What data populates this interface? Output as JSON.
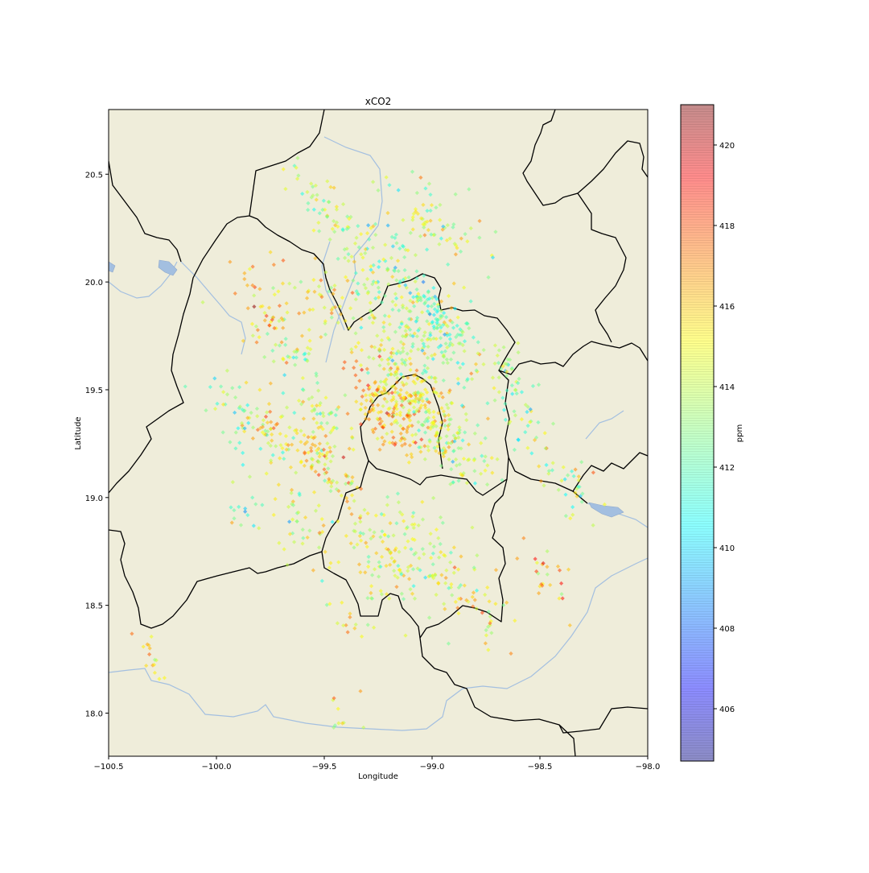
{
  "chart_data": {
    "type": "scatter",
    "title": "xCO2",
    "xlabel": "Longitude",
    "ylabel": "Latitude",
    "xlim": [
      -100.5,
      -98.0
    ],
    "ylim": [
      17.8,
      20.8
    ],
    "xticks": [
      -100.5,
      -100.0,
      -99.5,
      -99.0,
      -98.5,
      -98.0
    ],
    "xtick_labels": [
      "−100.5",
      "−100.0",
      "−99.5",
      "−99.0",
      "−98.5",
      "−98.0"
    ],
    "yticks": [
      18.0,
      18.5,
      19.0,
      19.5,
      20.0,
      20.5
    ],
    "ytick_labels": [
      "18.0",
      "18.5",
      "19.0",
      "19.5",
      "20.0",
      "20.5"
    ],
    "grid": false,
    "background": "#efedda",
    "marker": "diamond",
    "colormap": "jet",
    "colorbar": {
      "label": "ppm",
      "range": [
        404.7,
        421.0
      ],
      "ticks": [
        406,
        408,
        410,
        412,
        414,
        416,
        418,
        420
      ],
      "tick_labels": [
        "406",
        "408",
        "410",
        "412",
        "414",
        "416",
        "418",
        "420"
      ]
    },
    "clusters": [
      {
        "lon": -99.2,
        "lat": 19.38,
        "n": 140,
        "spread": 0.09,
        "value": 416.2
      },
      {
        "lon": -99.05,
        "lat": 19.42,
        "n": 120,
        "spread": 0.1,
        "value": 415.0
      },
      {
        "lon": -99.15,
        "lat": 19.62,
        "n": 120,
        "spread": 0.12,
        "value": 414.3
      },
      {
        "lon": -98.95,
        "lat": 19.72,
        "n": 110,
        "spread": 0.1,
        "value": 413.0
      },
      {
        "lon": -98.88,
        "lat": 19.25,
        "n": 90,
        "spread": 0.09,
        "value": 413.6
      },
      {
        "lon": -99.0,
        "lat": 19.85,
        "n": 70,
        "spread": 0.09,
        "value": 411.9
      },
      {
        "lon": -98.98,
        "lat": 20.25,
        "n": 70,
        "spread": 0.1,
        "value": 413.7
      },
      {
        "lon": -99.2,
        "lat": 20.12,
        "n": 60,
        "spread": 0.1,
        "value": 412.7
      },
      {
        "lon": -99.42,
        "lat": 20.25,
        "n": 30,
        "spread": 0.06,
        "value": 414.6
      },
      {
        "lon": -99.55,
        "lat": 20.43,
        "n": 30,
        "spread": 0.07,
        "value": 413.4
      },
      {
        "lon": -99.3,
        "lat": 19.98,
        "n": 40,
        "spread": 0.1,
        "value": 413.8
      },
      {
        "lon": -99.48,
        "lat": 19.9,
        "n": 40,
        "spread": 0.09,
        "value": 414.6
      },
      {
        "lon": -99.72,
        "lat": 19.92,
        "n": 40,
        "spread": 0.1,
        "value": 415.6
      },
      {
        "lon": -99.65,
        "lat": 19.65,
        "n": 40,
        "spread": 0.09,
        "value": 414.0
      },
      {
        "lon": -99.58,
        "lat": 19.22,
        "n": 70,
        "spread": 0.08,
        "value": 415.2
      },
      {
        "lon": -99.78,
        "lat": 19.32,
        "n": 45,
        "spread": 0.07,
        "value": 415.8
      },
      {
        "lon": -99.45,
        "lat": 19.1,
        "n": 40,
        "spread": 0.07,
        "value": 414.7
      },
      {
        "lon": -99.5,
        "lat": 19.4,
        "n": 40,
        "spread": 0.08,
        "value": 413.7
      },
      {
        "lon": -99.9,
        "lat": 19.38,
        "n": 40,
        "spread": 0.1,
        "value": 412.2
      },
      {
        "lon": -99.25,
        "lat": 18.72,
        "n": 100,
        "spread": 0.11,
        "value": 414.2
      },
      {
        "lon": -99.05,
        "lat": 18.85,
        "n": 50,
        "spread": 0.1,
        "value": 413.5
      },
      {
        "lon": -99.62,
        "lat": 18.88,
        "n": 40,
        "spread": 0.08,
        "value": 414.0
      },
      {
        "lon": -98.9,
        "lat": 18.6,
        "n": 45,
        "spread": 0.09,
        "value": 414.5
      },
      {
        "lon": -98.65,
        "lat": 19.58,
        "n": 40,
        "spread": 0.07,
        "value": 413.3
      },
      {
        "lon": -98.55,
        "lat": 19.3,
        "n": 30,
        "spread": 0.08,
        "value": 412.8
      },
      {
        "lon": -98.35,
        "lat": 19.05,
        "n": 35,
        "spread": 0.08,
        "value": 413.7
      },
      {
        "lon": -98.5,
        "lat": 18.65,
        "n": 25,
        "spread": 0.07,
        "value": 415.8
      },
      {
        "lon": -98.75,
        "lat": 18.45,
        "n": 20,
        "spread": 0.07,
        "value": 415.2
      },
      {
        "lon": -99.4,
        "lat": 18.45,
        "n": 15,
        "spread": 0.08,
        "value": 414.8
      },
      {
        "lon": -100.3,
        "lat": 18.27,
        "n": 15,
        "spread": 0.05,
        "value": 416.2
      },
      {
        "lon": -99.4,
        "lat": 18.0,
        "n": 10,
        "spread": 0.06,
        "value": 415.4
      },
      {
        "lon": -99.85,
        "lat": 18.95,
        "n": 15,
        "spread": 0.07,
        "value": 412.6
      },
      {
        "lon": -99.8,
        "lat": 19.88,
        "n": 15,
        "spread": 0.05,
        "value": 417.2
      }
    ]
  }
}
